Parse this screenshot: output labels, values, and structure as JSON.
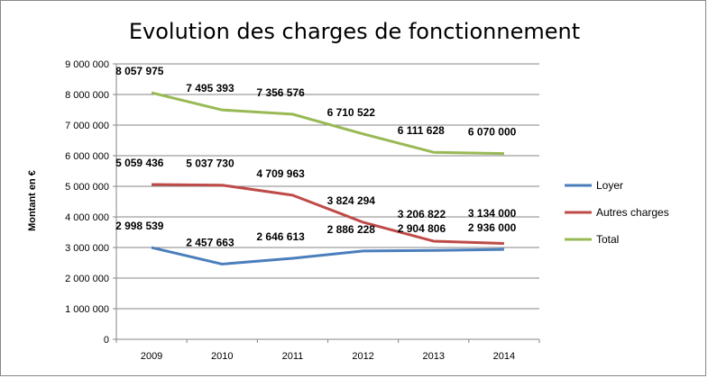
{
  "chart_data": {
    "type": "line",
    "title": "Evolution des charges de fonctionnement",
    "xlabel": "",
    "ylabel": "Montant en €",
    "categories": [
      "2009",
      "2010",
      "2011",
      "2012",
      "2013",
      "2014"
    ],
    "ylim": [
      0,
      9000000
    ],
    "yticks": [
      "0",
      "1 000 000",
      "2 000 000",
      "3 000 000",
      "4 000 000",
      "5 000 000",
      "6 000 000",
      "7 000 000",
      "8 000 000",
      "9 000 000"
    ],
    "grid": true,
    "legend_position": "right",
    "series": [
      {
        "name": "Loyer",
        "color": "#4a7ebb",
        "values": [
          2998539,
          2457663,
          2646613,
          2886228,
          2904806,
          2936000
        ],
        "labels": [
          "2 998 539",
          "2 457 663",
          "2 646 613",
          "2 886 228",
          "2 904 806",
          "2 936 000"
        ]
      },
      {
        "name": "Autres charges",
        "color": "#be4b48",
        "values": [
          5059436,
          5037730,
          4709963,
          3824294,
          3206822,
          3134000
        ],
        "labels": [
          "5 059 436",
          "5 037 730",
          "4 709 963",
          "3 824 294",
          "3 206 822",
          "3 134 000"
        ]
      },
      {
        "name": "Total",
        "color": "#98b954",
        "values": [
          8057975,
          7495393,
          7356576,
          6710522,
          6111628,
          6070000
        ],
        "labels": [
          "8 057 975",
          "7 495 393",
          "7 356 576",
          "6 710 522",
          "6 111 628",
          "6 070 000"
        ]
      }
    ]
  }
}
